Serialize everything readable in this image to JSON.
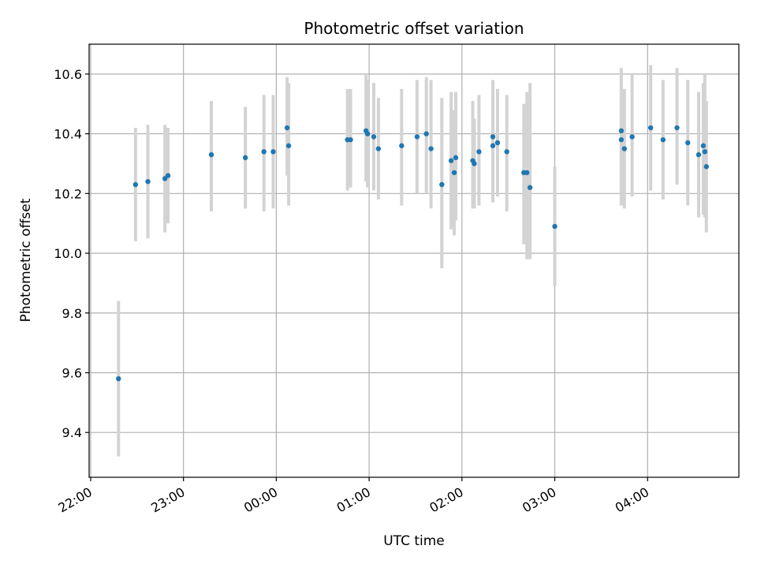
{
  "chart_data": {
    "type": "scatter",
    "title": "Photometric offset variation",
    "xlabel": "UTC time",
    "ylabel": "Photometric offset",
    "grid": true,
    "xlim": [
      "21:59",
      "04:59"
    ],
    "ylim": [
      9.25,
      10.7
    ],
    "x_ticks": [
      "22:00",
      "23:00",
      "00:00",
      "01:00",
      "02:00",
      "03:00",
      "04:00"
    ],
    "y_ticks": [
      "9.4",
      "9.6",
      "9.8",
      "10.0",
      "10.2",
      "10.4",
      "10.6"
    ],
    "colors": {
      "points": "#1f77b4",
      "errorbars": "#d3d3d3",
      "grid": "#b0b0b0"
    },
    "series": [
      {
        "x": [
          "22:18",
          "22:29",
          "22:37",
          "22:48",
          "22:50",
          "23:18",
          "23:40",
          "23:52",
          "23:58",
          "00:07",
          "00:08",
          "00:46",
          "00:48",
          "00:58",
          "00:59",
          "01:03",
          "01:06",
          "01:21",
          "01:31",
          "01:37",
          "01:40",
          "01:47",
          "01:53",
          "01:55",
          "01:56",
          "02:07",
          "02:08",
          "02:11",
          "02:20",
          "02:20",
          "02:23",
          "02:29",
          "02:40",
          "02:42",
          "02:44",
          "03:00",
          "03:43",
          "03:43",
          "03:45",
          "03:50",
          "04:02",
          "04:10",
          "04:19",
          "04:26",
          "04:33",
          "04:36",
          "04:37",
          "04:38"
        ],
        "y": [
          9.58,
          10.23,
          10.24,
          10.25,
          10.26,
          10.33,
          10.32,
          10.34,
          10.34,
          10.42,
          10.36,
          10.38,
          10.38,
          10.41,
          10.4,
          10.39,
          10.35,
          10.36,
          10.39,
          10.4,
          10.35,
          10.23,
          10.31,
          10.27,
          10.32,
          10.31,
          10.3,
          10.34,
          10.39,
          10.36,
          10.37,
          10.34,
          10.27,
          10.27,
          10.22,
          10.09,
          10.41,
          10.38,
          10.35,
          10.39,
          10.42,
          10.38,
          10.42,
          10.37,
          10.33,
          10.36,
          10.34,
          10.29
        ],
        "yerr_low": [
          9.32,
          10.04,
          10.05,
          10.07,
          10.1,
          10.14,
          10.15,
          10.14,
          10.15,
          10.26,
          10.16,
          10.21,
          10.22,
          10.24,
          10.22,
          10.21,
          10.18,
          10.16,
          10.2,
          10.2,
          10.15,
          9.95,
          10.08,
          10.06,
          10.11,
          10.15,
          10.15,
          10.16,
          10.17,
          10.18,
          10.19,
          10.14,
          10.03,
          9.98,
          9.98,
          9.89,
          10.17,
          10.16,
          10.15,
          10.19,
          10.21,
          10.18,
          10.23,
          10.16,
          10.12,
          10.13,
          10.12,
          10.07
        ],
        "yerr_high": [
          9.84,
          10.42,
          10.43,
          10.43,
          10.42,
          10.51,
          10.49,
          10.53,
          10.53,
          10.59,
          10.57,
          10.55,
          10.55,
          10.6,
          10.58,
          10.57,
          10.52,
          10.55,
          10.58,
          10.59,
          10.58,
          10.52,
          10.54,
          10.48,
          10.54,
          10.51,
          10.45,
          10.53,
          10.58,
          10.54,
          10.55,
          10.53,
          10.5,
          10.54,
          10.57,
          10.29,
          10.61,
          10.62,
          10.55,
          10.6,
          10.63,
          10.58,
          10.62,
          10.58,
          10.54,
          10.57,
          10.6,
          10.51
        ]
      }
    ]
  }
}
